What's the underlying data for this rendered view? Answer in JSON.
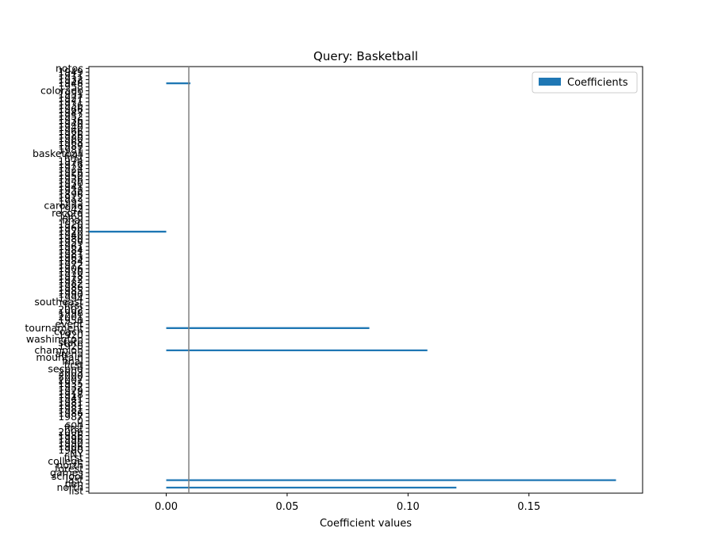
{
  "chart_data": {
    "type": "bar",
    "orientation": "horizontal",
    "title": "Query: Basketball",
    "xlabel": "Coefficient values",
    "ylabel": "",
    "xlim": [
      -0.032,
      0.197
    ],
    "xticks": [
      0.0,
      0.05,
      0.1,
      0.15
    ],
    "xtick_labels": [
      "0.00",
      "0.05",
      "0.10",
      "0.15"
    ],
    "legend": {
      "entries": [
        "Coefficients"
      ],
      "placement": "top-right"
    },
    "zero_line": true,
    "grid": false,
    "series": [
      {
        "name": "Coefficients",
        "color": "#1f77b4",
        "categories": [
          "list",
          "north",
          "pen",
          "last",
          "school",
          "games",
          "forest",
          "north",
          "college",
          "first",
          "NY",
          "1990",
          "1906",
          "1990",
          "1996",
          "1986",
          "2006",
          "first",
          "son",
          "0",
          "1987",
          "1986",
          "1981",
          "1981",
          "1981",
          "1941",
          "1918",
          "1929",
          "1932",
          "1935",
          "2007",
          "2000",
          "2003",
          "second",
          "first",
          "final",
          "mountain",
          "arena",
          "champion",
          "1920",
          "state",
          "washington",
          "1920",
          "coach",
          "tournament",
          "event",
          "1950",
          "2001",
          "1998",
          "2002",
          "first",
          "southeast",
          "1994",
          "1990",
          "1985",
          "1986",
          "1982",
          "1972",
          "1978",
          "1970",
          "1906",
          "1972",
          "1984",
          "1963",
          "1981",
          "1984",
          "1961",
          "1959",
          "1980",
          "1940",
          "1920",
          "1960",
          "1920",
          "final",
          "1968",
          "record",
          "1942",
          "carolina",
          "1993",
          "1912",
          "1896",
          "1938",
          "1941",
          "1950",
          "1936",
          "1950",
          "1926",
          "1924",
          "1976",
          "1974",
          "first",
          "basketball",
          "1981",
          "1989",
          "1968",
          "1980",
          "1926",
          "1966",
          "1940",
          "1940",
          "1936",
          "1952",
          "1947",
          "1966",
          "1936",
          "1971",
          "1927",
          "1951",
          "colorado",
          "1958",
          "1948",
          "1932",
          "1911",
          "1949",
          "notoc"
        ],
        "values": [
          0,
          0.12,
          0,
          0.186,
          0,
          0,
          0,
          0,
          0,
          0,
          0,
          0,
          0,
          0,
          0,
          0,
          0,
          0,
          0,
          0,
          0,
          0,
          0,
          0,
          0,
          0,
          0,
          0,
          0,
          0,
          0,
          0,
          0,
          0,
          0,
          0,
          0,
          0,
          0.108,
          0,
          0,
          0,
          0,
          0,
          0.084,
          0,
          0,
          0,
          0,
          0,
          0,
          0,
          0,
          0,
          0,
          0,
          0,
          0,
          0,
          0,
          0,
          0,
          0,
          0,
          0,
          0,
          0,
          0,
          0,
          0,
          -0.032,
          0,
          0,
          0,
          0,
          0,
          0,
          0,
          0,
          0,
          0,
          0,
          0,
          0,
          0,
          0,
          0,
          0,
          0,
          0,
          0,
          0,
          0,
          0,
          0,
          0,
          0,
          0,
          0,
          0,
          0,
          0,
          0,
          0,
          0,
          0,
          0,
          0,
          0,
          0,
          0.01,
          0,
          0,
          0,
          0
        ]
      }
    ]
  }
}
